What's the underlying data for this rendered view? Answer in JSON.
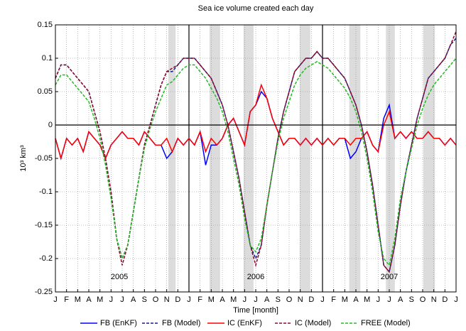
{
  "chart_data": {
    "type": "line",
    "title": "Sea ice volume created each day",
    "xlabel": "Time [month]",
    "ylabel": "10³ km³",
    "xlim": [
      0,
      36
    ],
    "ylim": [
      -0.25,
      0.15
    ],
    "yticks": [
      -0.25,
      -0.2,
      -0.15,
      -0.1,
      -0.05,
      0,
      0.05,
      0.1,
      0.15
    ],
    "xticks": [
      {
        "value": 0,
        "label": "J"
      },
      {
        "value": 1,
        "label": "F"
      },
      {
        "value": 2,
        "label": "M"
      },
      {
        "value": 3,
        "label": "A"
      },
      {
        "value": 4,
        "label": "M"
      },
      {
        "value": 5,
        "label": "J"
      },
      {
        "value": 6,
        "label": "J"
      },
      {
        "value": 7,
        "label": "A"
      },
      {
        "value": 8,
        "label": "S"
      },
      {
        "value": 9,
        "label": "O"
      },
      {
        "value": 10,
        "label": "N"
      },
      {
        "value": 11,
        "label": "D"
      },
      {
        "value": 12,
        "label": "J"
      },
      {
        "value": 13,
        "label": "F"
      },
      {
        "value": 14,
        "label": "M"
      },
      {
        "value": 15,
        "label": "A"
      },
      {
        "value": 16,
        "label": "M"
      },
      {
        "value": 17,
        "label": "J"
      },
      {
        "value": 18,
        "label": "J"
      },
      {
        "value": 19,
        "label": "A"
      },
      {
        "value": 20,
        "label": "S"
      },
      {
        "value": 21,
        "label": "O"
      },
      {
        "value": 22,
        "label": "N"
      },
      {
        "value": 23,
        "label": "D"
      },
      {
        "value": 24,
        "label": "J"
      },
      {
        "value": 25,
        "label": "F"
      },
      {
        "value": 26,
        "label": "M"
      },
      {
        "value": 27,
        "label": "A"
      },
      {
        "value": 28,
        "label": "M"
      },
      {
        "value": 29,
        "label": "J"
      },
      {
        "value": 30,
        "label": "J"
      },
      {
        "value": 31,
        "label": "A"
      },
      {
        "value": 32,
        "label": "S"
      },
      {
        "value": 33,
        "label": "O"
      },
      {
        "value": 34,
        "label": "N"
      },
      {
        "value": 35,
        "label": "D"
      },
      {
        "value": 36,
        "label": "J"
      }
    ],
    "grid": true,
    "legend": "bottom",
    "year_lines": [
      12,
      24
    ],
    "shaded": [
      [
        10.15,
        10.8
      ],
      [
        13.85,
        14.8
      ],
      [
        16.9,
        17.8
      ],
      [
        21.95,
        22.9
      ],
      [
        26.4,
        27.4
      ],
      [
        29.7,
        30.5
      ],
      [
        33.06,
        34.1
      ]
    ],
    "annotations": [
      {
        "text": "2005",
        "x": 5.75,
        "y": -0.228
      },
      {
        "text": "2006",
        "x": 18,
        "y": -0.228
      },
      {
        "text": "2007",
        "x": 30,
        "y": -0.228
      }
    ],
    "x": [
      0,
      0.5,
      1,
      1.5,
      2,
      2.5,
      3,
      3.5,
      4,
      4.5,
      5,
      5.5,
      6,
      6.5,
      7,
      7.5,
      8,
      8.5,
      9,
      9.5,
      10,
      10.5,
      11,
      11.5,
      12,
      12.5,
      13,
      13.5,
      14,
      14.5,
      15,
      15.5,
      16,
      16.5,
      17,
      17.5,
      18,
      18.5,
      19,
      19.5,
      20,
      20.5,
      21,
      21.5,
      22,
      22.5,
      23,
      23.5,
      24,
      24.5,
      25,
      25.5,
      26,
      26.5,
      27,
      27.5,
      28,
      28.5,
      29,
      29.5,
      30,
      30.5,
      31,
      31.5,
      32,
      32.5,
      33,
      33.5,
      34,
      34.5,
      35,
      35.5,
      36
    ],
    "series": [
      {
        "name": "FB (EnKF)",
        "color": "#0000ff",
        "style": "solid",
        "values": [
          -0.02,
          -0.05,
          -0.02,
          -0.03,
          -0.02,
          -0.04,
          -0.01,
          -0.02,
          -0.03,
          -0.05,
          -0.03,
          -0.02,
          -0.01,
          -0.02,
          -0.02,
          -0.03,
          -0.01,
          -0.02,
          -0.03,
          -0.03,
          -0.05,
          -0.04,
          -0.02,
          -0.03,
          -0.02,
          -0.03,
          -0.01,
          -0.06,
          -0.03,
          -0.03,
          -0.02,
          0.0,
          0.01,
          -0.01,
          -0.03,
          0.02,
          0.03,
          0.05,
          0.04,
          0.01,
          -0.01,
          -0.03,
          -0.02,
          -0.02,
          -0.03,
          -0.02,
          -0.03,
          -0.02,
          -0.03,
          -0.02,
          -0.03,
          -0.02,
          -0.02,
          -0.05,
          -0.04,
          -0.02,
          -0.01,
          -0.03,
          -0.04,
          0.01,
          0.03,
          -0.02,
          -0.01,
          -0.02,
          -0.01,
          -0.02,
          -0.02,
          -0.01,
          -0.02,
          -0.02,
          -0.03,
          -0.02,
          -0.03
        ]
      },
      {
        "name": "FB (Model)",
        "color": "#1a1a8c",
        "style": "dashed",
        "values": [
          0.07,
          0.09,
          0.09,
          0.08,
          0.07,
          0.06,
          0.05,
          0.02,
          -0.01,
          -0.05,
          -0.1,
          -0.17,
          -0.2,
          -0.18,
          -0.13,
          -0.08,
          -0.03,
          0.0,
          0.03,
          0.06,
          0.08,
          0.08,
          0.09,
          0.1,
          0.1,
          0.1,
          0.09,
          0.08,
          0.07,
          0.05,
          0.03,
          0.0,
          -0.04,
          -0.08,
          -0.13,
          -0.18,
          -0.2,
          -0.18,
          -0.12,
          -0.07,
          -0.02,
          0.02,
          0.05,
          0.08,
          0.09,
          0.1,
          0.1,
          0.11,
          0.1,
          0.1,
          0.09,
          0.08,
          0.07,
          0.05,
          0.03,
          0.0,
          -0.04,
          -0.09,
          -0.15,
          -0.21,
          -0.22,
          -0.18,
          -0.12,
          -0.07,
          -0.03,
          0.01,
          0.04,
          0.07,
          0.08,
          0.09,
          0.1,
          0.12,
          0.13
        ]
      },
      {
        "name": "IC (EnKF)",
        "color": "#ff0000",
        "style": "solid",
        "values": [
          -0.02,
          -0.05,
          -0.02,
          -0.03,
          -0.02,
          -0.04,
          -0.01,
          -0.02,
          -0.03,
          -0.05,
          -0.03,
          -0.02,
          -0.01,
          -0.02,
          -0.02,
          -0.03,
          -0.01,
          -0.02,
          -0.03,
          -0.03,
          -0.02,
          -0.04,
          -0.02,
          -0.03,
          -0.02,
          -0.03,
          -0.01,
          -0.04,
          -0.02,
          -0.03,
          -0.02,
          0.0,
          0.01,
          -0.01,
          -0.03,
          0.02,
          0.03,
          0.06,
          0.04,
          0.01,
          -0.01,
          -0.03,
          -0.02,
          -0.02,
          -0.03,
          -0.02,
          -0.03,
          -0.02,
          -0.03,
          -0.02,
          -0.03,
          -0.02,
          -0.02,
          -0.03,
          -0.02,
          -0.02,
          -0.01,
          -0.03,
          -0.04,
          0.0,
          0.02,
          -0.02,
          -0.01,
          -0.02,
          -0.01,
          -0.02,
          -0.02,
          -0.01,
          -0.02,
          -0.02,
          -0.03,
          -0.02,
          -0.03
        ]
      },
      {
        "name": "IC (Model)",
        "color": "#8b0a2a",
        "style": "dashed",
        "values": [
          0.07,
          0.09,
          0.09,
          0.08,
          0.07,
          0.06,
          0.05,
          0.02,
          -0.01,
          -0.05,
          -0.1,
          -0.17,
          -0.21,
          -0.18,
          -0.13,
          -0.08,
          -0.03,
          0.0,
          0.03,
          0.06,
          0.08,
          0.085,
          0.09,
          0.1,
          0.1,
          0.1,
          0.09,
          0.08,
          0.07,
          0.05,
          0.03,
          0.0,
          -0.04,
          -0.08,
          -0.13,
          -0.18,
          -0.21,
          -0.18,
          -0.12,
          -0.07,
          -0.02,
          0.02,
          0.05,
          0.08,
          0.09,
          0.1,
          0.1,
          0.11,
          0.1,
          0.1,
          0.09,
          0.08,
          0.07,
          0.05,
          0.03,
          0.0,
          -0.04,
          -0.09,
          -0.15,
          -0.21,
          -0.22,
          -0.18,
          -0.12,
          -0.07,
          -0.03,
          0.01,
          0.04,
          0.07,
          0.08,
          0.09,
          0.1,
          0.12,
          0.14
        ]
      },
      {
        "name": "FREE (Model)",
        "color": "#22bb22",
        "style": "dashed",
        "values": [
          0.06,
          0.075,
          0.075,
          0.065,
          0.055,
          0.045,
          0.035,
          0.01,
          -0.02,
          -0.06,
          -0.11,
          -0.17,
          -0.2,
          -0.18,
          -0.13,
          -0.08,
          -0.035,
          -0.005,
          0.02,
          0.04,
          0.06,
          0.065,
          0.075,
          0.085,
          0.09,
          0.09,
          0.08,
          0.07,
          0.055,
          0.04,
          0.02,
          -0.01,
          -0.05,
          -0.09,
          -0.14,
          -0.18,
          -0.19,
          -0.17,
          -0.12,
          -0.07,
          -0.025,
          0.01,
          0.035,
          0.06,
          0.075,
          0.085,
          0.09,
          0.095,
          0.09,
          0.085,
          0.075,
          0.065,
          0.055,
          0.04,
          0.02,
          -0.01,
          -0.05,
          -0.1,
          -0.16,
          -0.2,
          -0.21,
          -0.17,
          -0.11,
          -0.07,
          -0.035,
          0.0,
          0.025,
          0.045,
          0.06,
          0.07,
          0.08,
          0.09,
          0.1
        ]
      }
    ]
  }
}
